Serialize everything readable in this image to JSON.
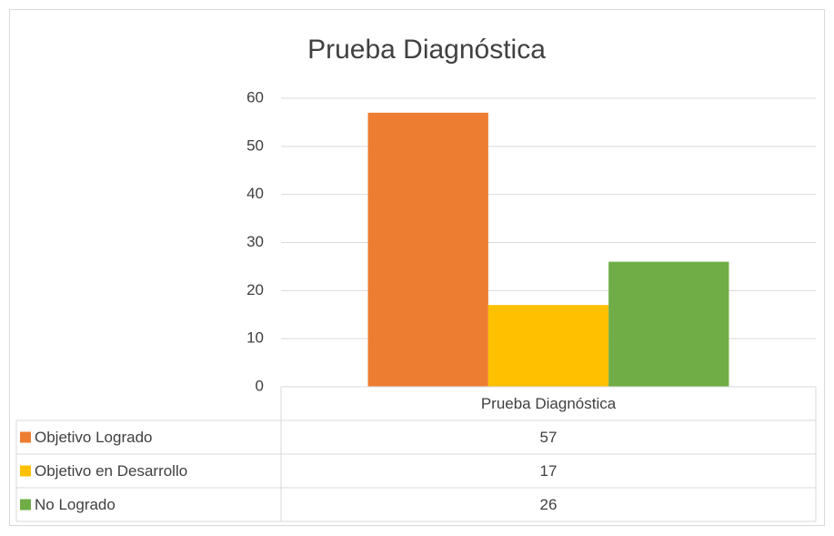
{
  "chart_data": {
    "type": "bar",
    "title": "Prueba Diagnóstica",
    "categories": [
      "Prueba Diagnóstica"
    ],
    "series": [
      {
        "name": "Objetivo Logrado",
        "color": "#ed7d31",
        "values": [
          57
        ]
      },
      {
        "name": "Objetivo en Desarrollo",
        "color": "#ffc000",
        "values": [
          17
        ]
      },
      {
        "name": "No Logrado",
        "color": "#70ad47",
        "values": [
          26
        ]
      }
    ],
    "ylim": [
      0,
      60
    ],
    "yticks": [
      0,
      10,
      20,
      30,
      40,
      50,
      60
    ],
    "grid": true
  }
}
